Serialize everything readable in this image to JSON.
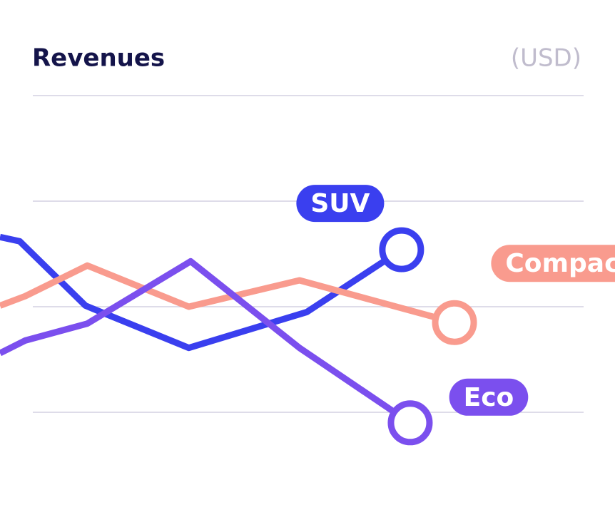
{
  "chart_data": {
    "type": "line",
    "title": "Revenues",
    "unit_label": "(USD)",
    "xlim": [
      0,
      100
    ],
    "ylim": [
      -1,
      3
    ],
    "yticks": [
      0,
      1,
      2,
      3
    ],
    "grid": true,
    "series": [
      {
        "name": "SUV",
        "color": "#3a3fef",
        "x": [
          0,
          3.2,
          13.9,
          30.7,
          49.9,
          65.3
        ],
        "values": [
          1.66,
          1.62,
          1.01,
          0.61,
          0.95,
          1.54
        ]
      },
      {
        "name": "Compact",
        "color": "#f99b8e",
        "x": [
          0,
          4.1,
          14.2,
          30.7,
          48.7,
          73.9
        ],
        "values": [
          1.01,
          1.1,
          1.39,
          1.0,
          1.25,
          0.85
        ]
      },
      {
        "name": "Eco",
        "color": "#7b4fee",
        "x": [
          0,
          4.1,
          14.2,
          31.0,
          48.7,
          66.7
        ],
        "values": [
          0.56,
          0.68,
          0.84,
          1.43,
          0.61,
          -0.1
        ]
      }
    ]
  }
}
